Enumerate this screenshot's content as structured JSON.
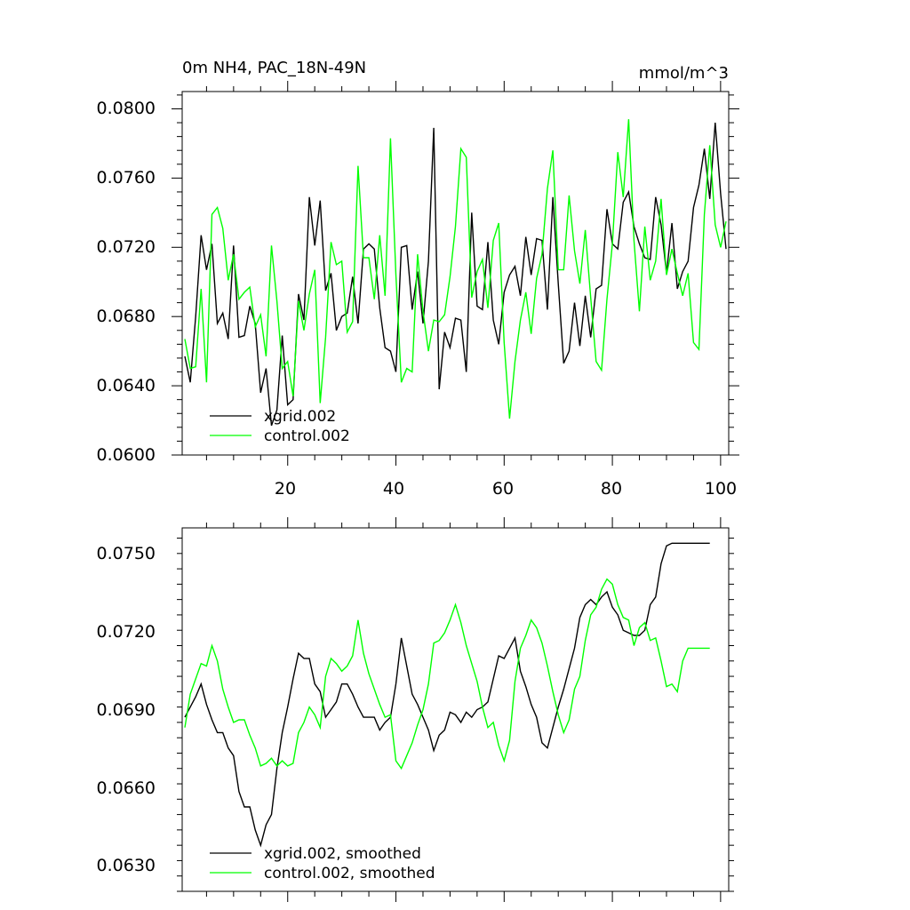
{
  "charts": {
    "top": {
      "title_left": "0m NH4, PAC_18N-49N",
      "title_right": "mmol/m^3",
      "y_tick_labels": [
        "0.0600",
        "0.0640",
        "0.0680",
        "0.0720",
        "0.0760",
        "0.0800"
      ],
      "x_tick_labels": [
        "20",
        "40",
        "60",
        "80",
        "100"
      ],
      "legend": [
        "xgrid.002",
        "control.002"
      ]
    },
    "bottom": {
      "y_tick_labels": [
        "0.0630",
        "0.0660",
        "0.0690",
        "0.0720",
        "0.0750"
      ],
      "legend": [
        "xgrid.002, smoothed",
        "control.002, smoothed"
      ]
    }
  },
  "colors": {
    "xgrid": "#000000",
    "control": "#00ff00"
  },
  "chart_data": [
    {
      "type": "line",
      "title": "0m NH4, PAC_18N-49N",
      "units": "mmol/m^3",
      "x": [
        1,
        2,
        3,
        4,
        5,
        6,
        7,
        8,
        9,
        10,
        11,
        12,
        13,
        14,
        15,
        16,
        17,
        18,
        19,
        20,
        21,
        22,
        23,
        24,
        25,
        26,
        27,
        28,
        29,
        30,
        31,
        32,
        33,
        34,
        35,
        36,
        37,
        38,
        39,
        40,
        41,
        42,
        43,
        44,
        45,
        46,
        47,
        48,
        49,
        50,
        51,
        52,
        53,
        54,
        55,
        56,
        57,
        58,
        59,
        60,
        61,
        62,
        63,
        64,
        65,
        66,
        67,
        68,
        69,
        70,
        71,
        72,
        73,
        74,
        75,
        76,
        77,
        78,
        79,
        80,
        81,
        82,
        83,
        84,
        85,
        86,
        87,
        88,
        89,
        90,
        91,
        92,
        93,
        94,
        95,
        96,
        97,
        98,
        99,
        100,
        101
      ],
      "xlim": [
        0.5,
        101.5
      ],
      "ylim": [
        0.06,
        0.081
      ],
      "x_ticks": [
        20,
        40,
        60,
        80,
        100
      ],
      "y_ticks": [
        0.06,
        0.064,
        0.068,
        0.072,
        0.076,
        0.08
      ],
      "series": [
        {
          "name": "xgrid.002",
          "color": "#000000",
          "values": [
            0.0657,
            0.0642,
            0.068,
            0.0727,
            0.0707,
            0.0722,
            0.0676,
            0.0682,
            0.0667,
            0.0721,
            0.0668,
            0.0669,
            0.0686,
            0.0676,
            0.0636,
            0.065,
            0.0617,
            0.0626,
            0.0669,
            0.0629,
            0.0632,
            0.0693,
            0.0678,
            0.0749,
            0.0721,
            0.0747,
            0.0695,
            0.0705,
            0.0672,
            0.068,
            0.0682,
            0.0703,
            0.0676,
            0.0719,
            0.0722,
            0.0719,
            0.0685,
            0.0662,
            0.066,
            0.0648,
            0.072,
            0.0721,
            0.0684,
            0.0706,
            0.0676,
            0.0712,
            0.0789,
            0.0638,
            0.0671,
            0.0662,
            0.0679,
            0.0678,
            0.0648,
            0.074,
            0.0686,
            0.0684,
            0.0723,
            0.0678,
            0.0664,
            0.0694,
            0.0704,
            0.0709,
            0.0692,
            0.0726,
            0.0704,
            0.0725,
            0.0724,
            0.0684,
            0.0749,
            0.0699,
            0.0653,
            0.066,
            0.0688,
            0.0663,
            0.0692,
            0.0668,
            0.0696,
            0.0698,
            0.0742,
            0.0722,
            0.0719,
            0.0746,
            0.0752,
            0.0732,
            0.0722,
            0.0714,
            0.0713,
            0.0749,
            0.0733,
            0.0705,
            0.0734,
            0.0696,
            0.0706,
            0.0712,
            0.0743,
            0.0756,
            0.0777,
            0.0748,
            0.0792,
            0.0751,
            0.0719
          ]
        },
        {
          "name": "control.002",
          "color": "#00ff00",
          "values": [
            0.0667,
            0.065,
            0.0651,
            0.0696,
            0.0642,
            0.0739,
            0.0743,
            0.0731,
            0.0701,
            0.0716,
            0.069,
            0.0694,
            0.0697,
            0.0674,
            0.0681,
            0.0657,
            0.0721,
            0.0689,
            0.065,
            0.0654,
            0.0634,
            0.0689,
            0.0672,
            0.0693,
            0.0707,
            0.063,
            0.0668,
            0.0723,
            0.071,
            0.0712,
            0.0671,
            0.0677,
            0.0767,
            0.0714,
            0.0714,
            0.069,
            0.0727,
            0.0692,
            0.0783,
            0.0704,
            0.0642,
            0.065,
            0.0648,
            0.0716,
            0.0683,
            0.066,
            0.0678,
            0.0677,
            0.0681,
            0.0703,
            0.0732,
            0.0777,
            0.0772,
            0.0691,
            0.0706,
            0.0713,
            0.0685,
            0.0724,
            0.0734,
            0.0665,
            0.0621,
            0.0654,
            0.0678,
            0.0694,
            0.067,
            0.0702,
            0.0716,
            0.0754,
            0.0776,
            0.0707,
            0.0707,
            0.075,
            0.0718,
            0.0699,
            0.073,
            0.0691,
            0.0654,
            0.0649,
            0.069,
            0.0722,
            0.0775,
            0.0749,
            0.0794,
            0.0724,
            0.0683,
            0.0732,
            0.0701,
            0.0712,
            0.0748,
            0.0704,
            0.0719,
            0.0705,
            0.0692,
            0.0705,
            0.0665,
            0.0661,
            0.0739,
            0.0779,
            0.0733,
            0.072,
            0.0735
          ]
        }
      ],
      "legend_labels": [
        "xgrid.002",
        "control.002"
      ]
    },
    {
      "type": "line",
      "title": "",
      "x": [
        1,
        2,
        3,
        4,
        5,
        6,
        7,
        8,
        9,
        10,
        11,
        12,
        13,
        14,
        15,
        16,
        17,
        18,
        19,
        20,
        21,
        22,
        23,
        24,
        25,
        26,
        27,
        28,
        29,
        30,
        31,
        32,
        33,
        34,
        35,
        36,
        37,
        38,
        39,
        40,
        41,
        42,
        43,
        44,
        45,
        46,
        47,
        48,
        49,
        50,
        51,
        52,
        53,
        54,
        55,
        56,
        57,
        58,
        59,
        60,
        61,
        62,
        63,
        64,
        65,
        66,
        67,
        68,
        69,
        70,
        71,
        72,
        73,
        74,
        75,
        76,
        77,
        78,
        79,
        80,
        81,
        82,
        83,
        84,
        85,
        86,
        87,
        88,
        89,
        90,
        91,
        92,
        93,
        94,
        95,
        96,
        97,
        98
      ],
      "xlim": [
        0.5,
        101.5
      ],
      "ylim": [
        0.062,
        0.0762
      ],
      "x_ticks": [
        20,
        40,
        60,
        80,
        100
      ],
      "y_ticks": [
        0.063,
        0.066,
        0.069,
        0.072,
        0.075
      ],
      "series": [
        {
          "name": "xgrid.002, smoothed",
          "color": "#000000",
          "values": [
            0.0688,
            0.0692,
            0.0696,
            0.0701,
            0.0693,
            0.0687,
            0.0682,
            0.0682,
            0.0676,
            0.0673,
            0.0659,
            0.0653,
            0.0653,
            0.0644,
            0.0638,
            0.0646,
            0.065,
            0.0668,
            0.0682,
            0.0692,
            0.0703,
            0.0713,
            0.0711,
            0.0711,
            0.0701,
            0.0698,
            0.0688,
            0.0691,
            0.0694,
            0.0701,
            0.0701,
            0.0697,
            0.0692,
            0.0688,
            0.0688,
            0.0688,
            0.0683,
            0.0686,
            0.0688,
            0.0701,
            0.0719,
            0.0708,
            0.0697,
            0.0693,
            0.0688,
            0.0683,
            0.0675,
            0.0681,
            0.0683,
            0.069,
            0.0689,
            0.0686,
            0.069,
            0.0688,
            0.0691,
            0.0692,
            0.0694,
            0.0703,
            0.0712,
            0.0711,
            0.0715,
            0.0719,
            0.0706,
            0.07,
            0.0693,
            0.0688,
            0.0678,
            0.0676,
            0.0684,
            0.0692,
            0.0699,
            0.0707,
            0.0715,
            0.0727,
            0.0732,
            0.0734,
            0.0732,
            0.0735,
            0.0737,
            0.0731,
            0.0728,
            0.0722,
            0.0721,
            0.072,
            0.072,
            0.0722,
            0.0732,
            0.0735,
            0.0748,
            0.0755,
            0.0756,
            0.0756,
            0.0756,
            0.0756,
            0.0756,
            0.0756,
            0.0756,
            0.0756
          ]
        },
        {
          "name": "control.002, smoothed",
          "color": "#00ff00",
          "values": [
            0.0684,
            0.0697,
            0.0703,
            0.0709,
            0.0708,
            0.0716,
            0.071,
            0.0699,
            0.0692,
            0.0686,
            0.0687,
            0.0687,
            0.0681,
            0.0676,
            0.0669,
            0.067,
            0.0672,
            0.0669,
            0.0671,
            0.0669,
            0.067,
            0.0682,
            0.0686,
            0.0692,
            0.0689,
            0.0684,
            0.0704,
            0.0711,
            0.0709,
            0.0706,
            0.0708,
            0.0712,
            0.0726,
            0.0713,
            0.0705,
            0.0699,
            0.0693,
            0.0688,
            0.0689,
            0.0671,
            0.0668,
            0.0673,
            0.0678,
            0.0685,
            0.0691,
            0.0701,
            0.0717,
            0.0718,
            0.0721,
            0.0726,
            0.0732,
            0.0725,
            0.0716,
            0.0709,
            0.0702,
            0.0692,
            0.0684,
            0.0686,
            0.0677,
            0.0671,
            0.0679,
            0.0702,
            0.0715,
            0.072,
            0.0726,
            0.0723,
            0.0717,
            0.0708,
            0.0698,
            0.0689,
            0.0682,
            0.0687,
            0.0699,
            0.0704,
            0.0718,
            0.0728,
            0.0731,
            0.0738,
            0.0742,
            0.074,
            0.0732,
            0.0727,
            0.0726,
            0.0716,
            0.0723,
            0.0725,
            0.0718,
            0.0719,
            0.071,
            0.07,
            0.0701,
            0.0698,
            0.071,
            0.0715,
            0.0715,
            0.0715,
            0.0715,
            0.0715
          ]
        }
      ],
      "legend_labels": [
        "xgrid.002, smoothed",
        "control.002, smoothed"
      ]
    }
  ]
}
